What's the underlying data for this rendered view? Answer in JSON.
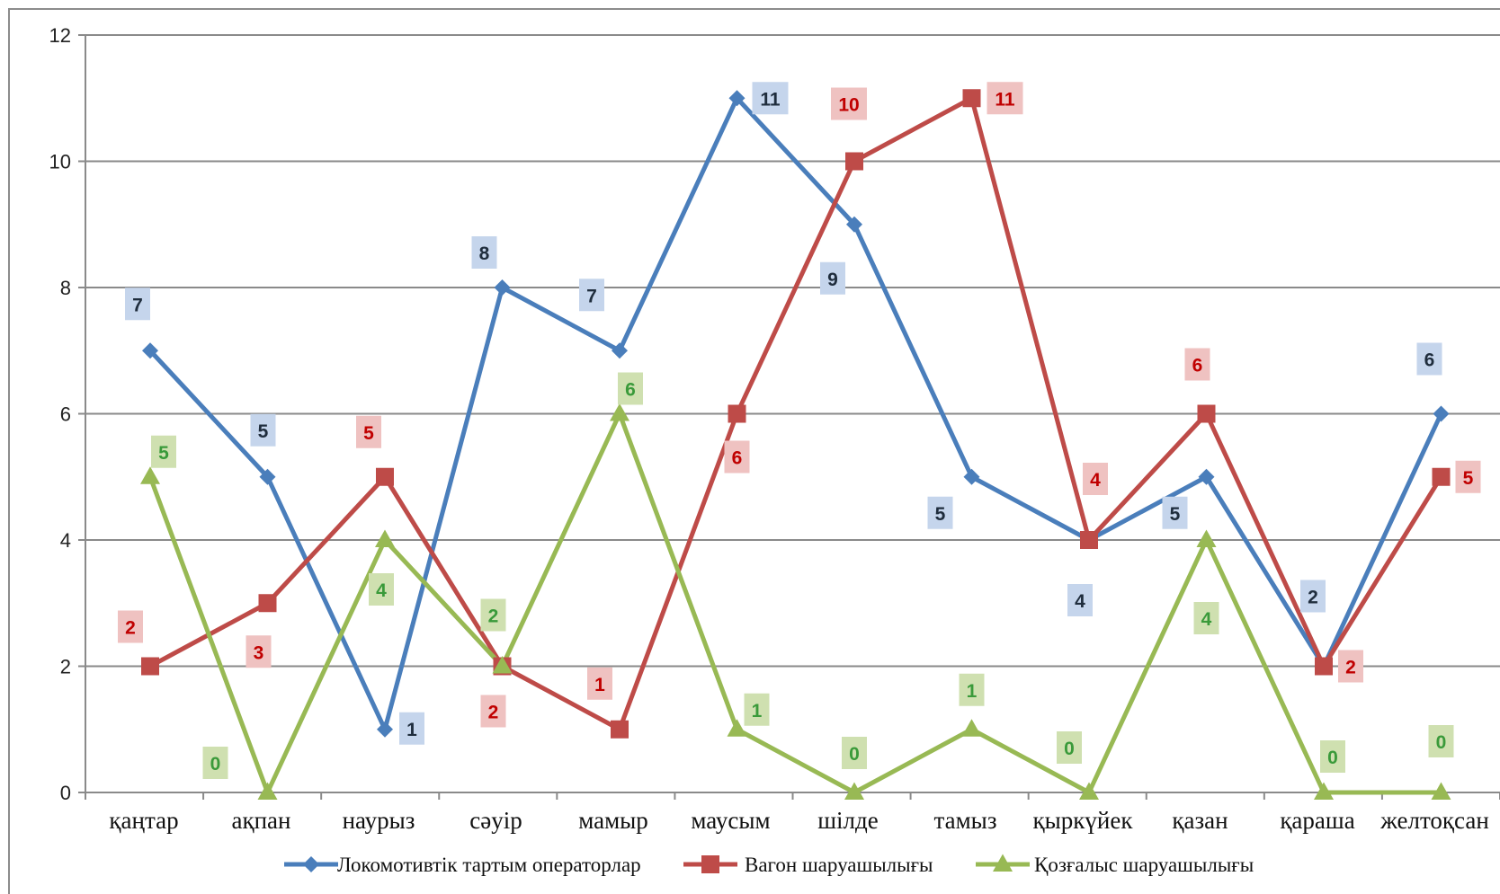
{
  "chart_data": {
    "type": "line",
    "categories": [
      "қаңтар",
      "ақпан",
      "наурыз",
      "сәуір",
      "мамыр",
      "маусым",
      "шілде",
      "тамыз",
      "қыркүйек",
      "қазан",
      "қараша",
      "желтоқсан"
    ],
    "ylim": [
      0,
      12
    ],
    "yticks": [
      0,
      2,
      4,
      6,
      8,
      10,
      12
    ],
    "grid": true,
    "legend_position": "bottom",
    "series": [
      {
        "name": "Локомотивтік тартым операторлар",
        "values": [
          7,
          5,
          1,
          8,
          7,
          11,
          9,
          5,
          4,
          5,
          2,
          6
        ],
        "color": "#4a7ebb",
        "label_bg": "#c5d5ec",
        "label_color": "#1f2d3d",
        "marker": "diamond"
      },
      {
        "name": "Вагон шаруашылығы",
        "values": [
          2,
          3,
          5,
          2,
          1,
          6,
          10,
          11,
          4,
          6,
          2,
          5
        ],
        "color": "#be4b48",
        "label_bg": "#efc2c1",
        "label_color": "#c00000",
        "marker": "square"
      },
      {
        "name": "Қозғалыс шаруашылығы",
        "values": [
          5,
          0,
          4,
          2,
          6,
          1,
          0,
          1,
          0,
          4,
          0,
          0
        ],
        "color": "#98b954",
        "label_bg": "#cfe0b0",
        "label_color": "#3a9a3a",
        "marker": "triangle"
      }
    ]
  }
}
